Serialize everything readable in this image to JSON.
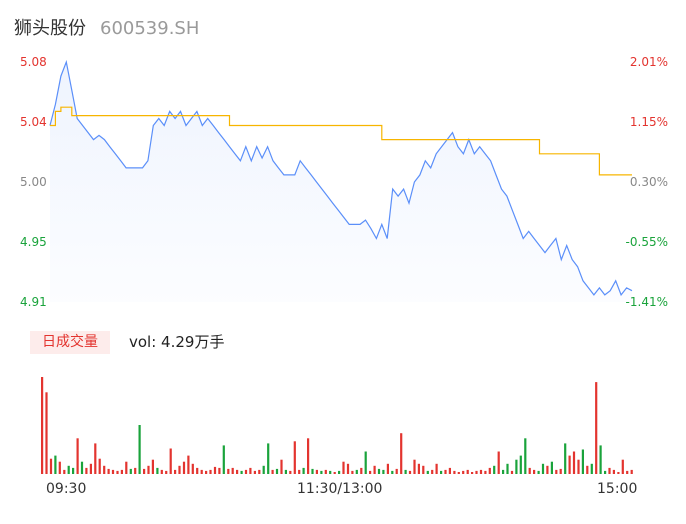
{
  "header": {
    "name": "狮头股份",
    "code": "600539.SH"
  },
  "colors": {
    "price_line": "#5b8ff9",
    "avg_line": "#f7b500",
    "up": "#e3342f",
    "down": "#1aa33b"
  },
  "chart_data": [
    {
      "type": "line",
      "title": "",
      "y_ticks": [
        "5.08",
        "5.04",
        "5.00",
        "4.95",
        "4.91"
      ],
      "y_right_ticks": [
        "2.01%",
        "1.15%",
        "0.30%",
        "-0.55%",
        "-1.41%"
      ],
      "ylim": [
        4.91,
        5.08
      ],
      "x_ticks": [
        "09:30",
        "11:30/13:00",
        "15:00"
      ],
      "series": [
        {
          "name": "",
          "values": [
            5.035,
            5.05,
            5.07,
            5.08,
            5.06,
            5.04,
            5.035,
            5.03,
            5.025,
            5.028,
            5.025,
            5.02,
            5.015,
            5.01,
            5.005,
            5.005,
            5.005,
            5.005,
            5.01,
            5.035,
            5.04,
            5.035,
            5.045,
            5.04,
            5.045,
            5.035,
            5.04,
            5.045,
            5.035,
            5.04,
            5.035,
            5.03,
            5.025,
            5.02,
            5.015,
            5.01,
            5.02,
            5.01,
            5.02,
            5.012,
            5.02,
            5.01,
            5.005,
            5.0,
            5.0,
            5.0,
            5.01,
            5.005,
            5.0,
            4.995,
            4.99,
            4.985,
            4.98,
            4.975,
            4.97,
            4.965,
            4.965,
            4.965,
            4.968,
            4.962,
            4.955,
            4.965,
            4.955,
            4.99,
            4.985,
            4.99,
            4.98,
            4.995,
            5.0,
            5.01,
            5.005,
            5.015,
            5.02,
            5.025,
            5.03,
            5.02,
            5.015,
            5.025,
            5.015,
            5.02,
            5.015,
            5.01,
            5.0,
            4.99,
            4.985,
            4.975,
            4.965,
            4.955,
            4.96,
            4.955,
            4.95,
            4.945,
            4.95,
            4.955,
            4.94,
            4.95,
            4.94,
            4.935,
            4.925,
            4.92,
            4.915,
            4.92,
            4.915,
            4.918,
            4.925,
            4.915,
            4.92,
            4.918
          ]
        },
        {
          "name": "",
          "values": [
            5.035,
            5.045,
            5.048,
            5.048,
            5.042,
            5.042,
            5.042,
            5.042,
            5.042,
            5.042,
            5.042,
            5.042,
            5.042,
            5.042,
            5.042,
            5.042,
            5.042,
            5.042,
            5.042,
            5.042,
            5.042,
            5.042,
            5.042,
            5.042,
            5.042,
            5.042,
            5.042,
            5.042,
            5.042,
            5.042,
            5.042,
            5.042,
            5.042,
            5.035,
            5.035,
            5.035,
            5.035,
            5.035,
            5.035,
            5.035,
            5.035,
            5.035,
            5.035,
            5.035,
            5.035,
            5.035,
            5.035,
            5.035,
            5.035,
            5.035,
            5.035,
            5.035,
            5.035,
            5.035,
            5.035,
            5.035,
            5.035,
            5.035,
            5.035,
            5.035,
            5.035,
            5.025,
            5.025,
            5.025,
            5.025,
            5.025,
            5.025,
            5.025,
            5.025,
            5.025,
            5.025,
            5.025,
            5.025,
            5.025,
            5.025,
            5.025,
            5.025,
            5.025,
            5.025,
            5.025,
            5.025,
            5.025,
            5.025,
            5.025,
            5.025,
            5.025,
            5.025,
            5.025,
            5.025,
            5.025,
            5.015,
            5.015,
            5.015,
            5.015,
            5.015,
            5.015,
            5.015,
            5.015,
            5.015,
            5.015,
            5.015,
            5.0,
            5.0,
            5.0,
            5.0,
            5.0,
            5.0,
            5.0
          ]
        }
      ]
    },
    {
      "type": "bar",
      "title": "日成交量",
      "annotation": "vol: 4.29万手",
      "values": [
        95,
        80,
        15,
        18,
        12,
        4,
        8,
        6,
        35,
        12,
        6,
        10,
        30,
        15,
        8,
        5,
        4,
        3,
        4,
        12,
        5,
        6,
        48,
        5,
        8,
        14,
        6,
        4,
        3,
        25,
        4,
        8,
        12,
        18,
        10,
        6,
        4,
        3,
        4,
        7,
        6,
        28,
        5,
        6,
        4,
        3,
        4,
        6,
        3,
        4,
        8,
        30,
        4,
        5,
        14,
        4,
        3,
        32,
        4,
        6,
        35,
        5,
        4,
        3,
        4,
        3,
        2,
        3,
        12,
        10,
        3,
        4,
        6,
        22,
        3,
        8,
        5,
        4,
        10,
        3,
        5,
        40,
        4,
        3,
        14,
        10,
        8,
        3,
        4,
        10,
        3,
        4,
        6,
        3,
        2,
        3,
        4,
        2,
        3,
        4,
        3,
        6,
        8,
        22,
        4,
        10,
        3,
        14,
        18,
        35,
        6,
        4,
        3,
        10,
        8,
        12,
        4,
        5,
        30,
        18,
        22,
        14,
        24,
        8,
        10,
        90,
        28,
        3,
        6,
        4,
        2,
        14,
        3,
        4
      ],
      "directions": [
        "u",
        "u",
        "u",
        "d",
        "u",
        "u",
        "d",
        "d",
        "u",
        "d",
        "u",
        "u",
        "u",
        "u",
        "u",
        "u",
        "u",
        "u",
        "u",
        "u",
        "d",
        "u",
        "d",
        "u",
        "u",
        "u",
        "d",
        "u",
        "u",
        "u",
        "u",
        "u",
        "u",
        "u",
        "u",
        "u",
        "u",
        "u",
        "u",
        "u",
        "u",
        "d",
        "u",
        "u",
        "u",
        "d",
        "u",
        "u",
        "u",
        "u",
        "d",
        "d",
        "u",
        "d",
        "u",
        "d",
        "u",
        "u",
        "u",
        "d",
        "u",
        "d",
        "u",
        "d",
        "u",
        "d",
        "u",
        "d",
        "u",
        "u",
        "u",
        "d",
        "u",
        "d",
        "u",
        "u",
        "d",
        "d",
        "u",
        "d",
        "u",
        "u",
        "d",
        "u",
        "u",
        "u",
        "u",
        "d",
        "u",
        "u",
        "d",
        "u",
        "u",
        "u",
        "u",
        "u",
        "u",
        "u",
        "u",
        "u",
        "u",
        "u",
        "d",
        "u",
        "d",
        "d",
        "u",
        "d",
        "d",
        "d",
        "u",
        "u",
        "d",
        "d",
        "u",
        "d",
        "u",
        "u",
        "d",
        "u",
        "u",
        "u",
        "d",
        "u",
        "d",
        "u",
        "d",
        "d",
        "u",
        "u",
        "u",
        "u",
        "u",
        "u"
      ]
    }
  ]
}
